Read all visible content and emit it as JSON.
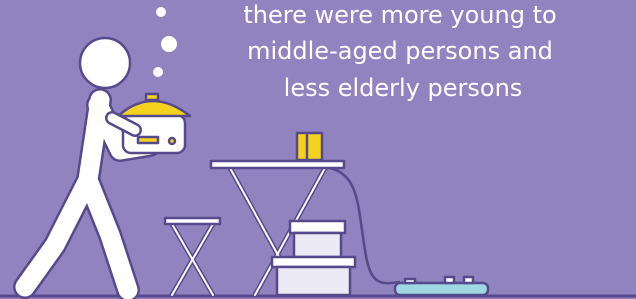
{
  "caption": [
    "there were more young to",
    "middle-aged persons and",
    "less elderly persons"
  ]
}
